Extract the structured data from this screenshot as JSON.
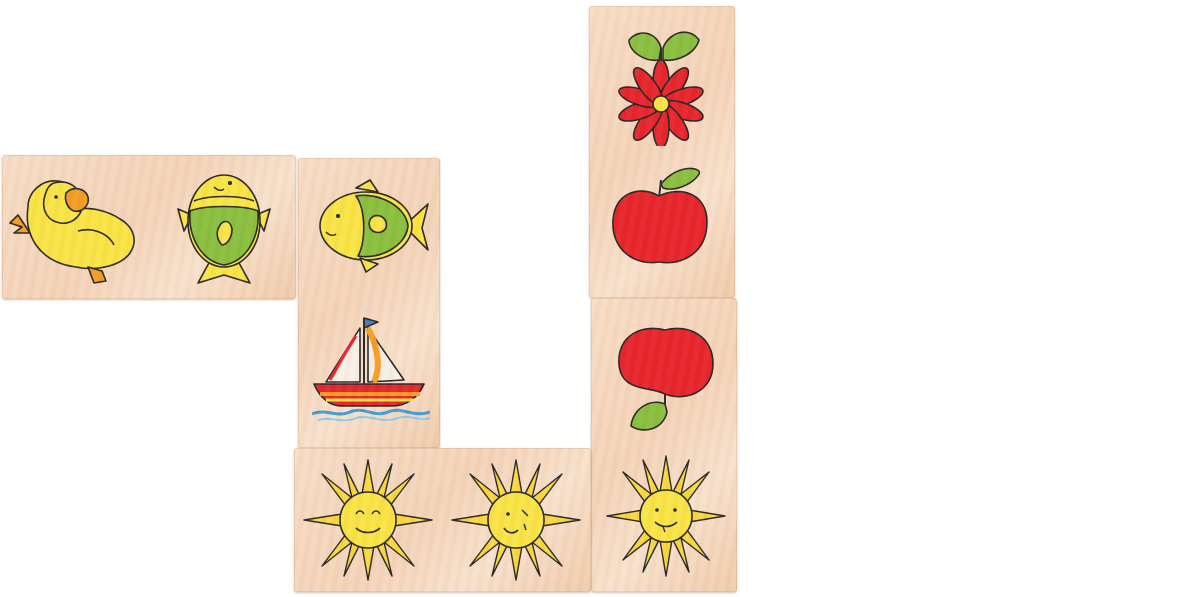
{
  "scene": {
    "description_colors": {
      "background": "#ffffff",
      "wood": "#f4d6bb",
      "yellow": "#f8e341",
      "green": "#86bd3a",
      "red": "#e61f26",
      "orange": "#f39a1f"
    },
    "tiles": [
      {
        "id": "tile-duck-fish",
        "faces": [
          "duck-icon",
          "fish-icon"
        ]
      },
      {
        "id": "tile-fish-boat",
        "faces": [
          "fish-icon",
          "sailboat-icon"
        ]
      },
      {
        "id": "tile-flower-apple",
        "faces": [
          "flower-icon",
          "apple-icon"
        ]
      },
      {
        "id": "tile-apple-sun",
        "faces": [
          "apple-icon",
          "sun-icon"
        ]
      },
      {
        "id": "tile-sun-sun",
        "faces": [
          "sun-icon",
          "sun-icon"
        ]
      }
    ]
  }
}
